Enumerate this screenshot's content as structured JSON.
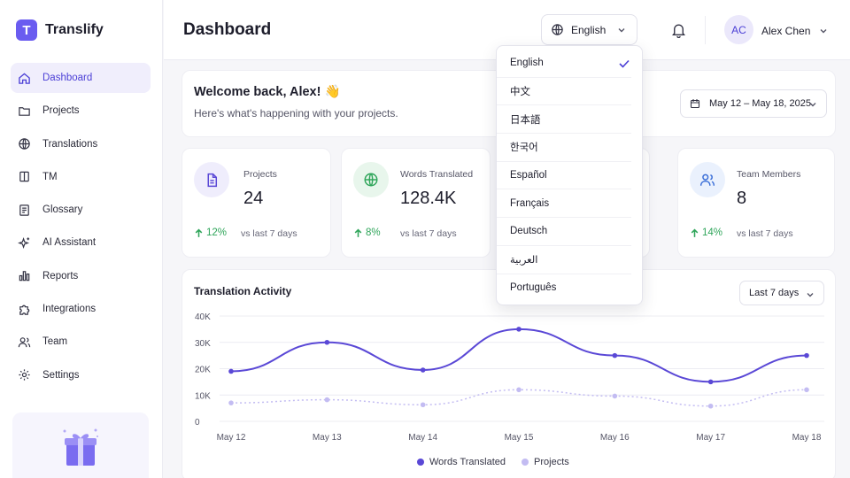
{
  "brand": {
    "logo_letter": "T",
    "name": "Translify",
    "accent": "#6a5cf0"
  },
  "sidebar": {
    "items": [
      {
        "label": "Dashboard",
        "icon": "home-icon",
        "active": true
      },
      {
        "label": "Projects",
        "icon": "folder-icon"
      },
      {
        "label": "Translations",
        "icon": "globe-icon"
      },
      {
        "label": "TM",
        "icon": "book-icon"
      },
      {
        "label": "Glossary",
        "icon": "glossary-icon"
      },
      {
        "label": "AI Assistant",
        "icon": "sparkle-icon"
      },
      {
        "label": "Reports",
        "icon": "bar-chart-icon"
      },
      {
        "label": "Integrations",
        "icon": "puzzle-icon"
      },
      {
        "label": "Team",
        "icon": "users-icon"
      },
      {
        "label": "Settings",
        "icon": "gear-icon"
      }
    ]
  },
  "header": {
    "title": "Dashboard",
    "language": "English",
    "user_initials": "AC",
    "user_name": "Alex Chen"
  },
  "welcome": {
    "title": "Welcome back, Alex! 👋",
    "subtitle": "Here's what's happening with your projects.",
    "date_range": "May 12 – May 18, 2025"
  },
  "stats": [
    {
      "label": "Projects",
      "value": "24",
      "change": "12%",
      "period": "vs last 7 days",
      "icon": "file-icon"
    },
    {
      "label": "Words Translated",
      "value": "128.4K",
      "change": "8%",
      "period": "vs last 7 days",
      "icon": "globe-icon"
    },
    {
      "label": "",
      "value": "",
      "change": "",
      "period": "",
      "icon": ""
    },
    {
      "label": "Team Members",
      "value": "8",
      "change": "14%",
      "period": "vs last 7 days",
      "icon": "users-icon"
    }
  ],
  "activity": {
    "title": "Translation Activity",
    "period": "Last 7 days"
  },
  "chart_data": {
    "type": "line",
    "title": "Translation Activity",
    "categories": [
      "May 12",
      "May 13",
      "May 14",
      "May 15",
      "May 16",
      "May 17",
      "May 18"
    ],
    "y_ticks": [
      "40K",
      "30K",
      "20K",
      "10K",
      "0"
    ],
    "ylim": [
      0,
      40000
    ],
    "grid": true,
    "legend_position": "bottom",
    "series": [
      {
        "name": "Words Translated",
        "color": "#5a48d6",
        "values": [
          19000,
          30000,
          19500,
          35000,
          25000,
          15000,
          25000
        ]
      },
      {
        "name": "Projects",
        "color": "#c3bcf2",
        "values": [
          7000,
          8200,
          6300,
          12000,
          9600,
          5800,
          12000
        ]
      }
    ]
  },
  "dropdown": {
    "selected": "English",
    "options": [
      "English",
      "中文",
      "日本語",
      "한국어",
      "Español",
      "Français",
      "Deutsch",
      "العربية",
      "Português"
    ]
  },
  "colors": {
    "positive": "#2fa55a",
    "line_primary": "#5a48d6",
    "line_secondary": "#c3bcf2"
  }
}
